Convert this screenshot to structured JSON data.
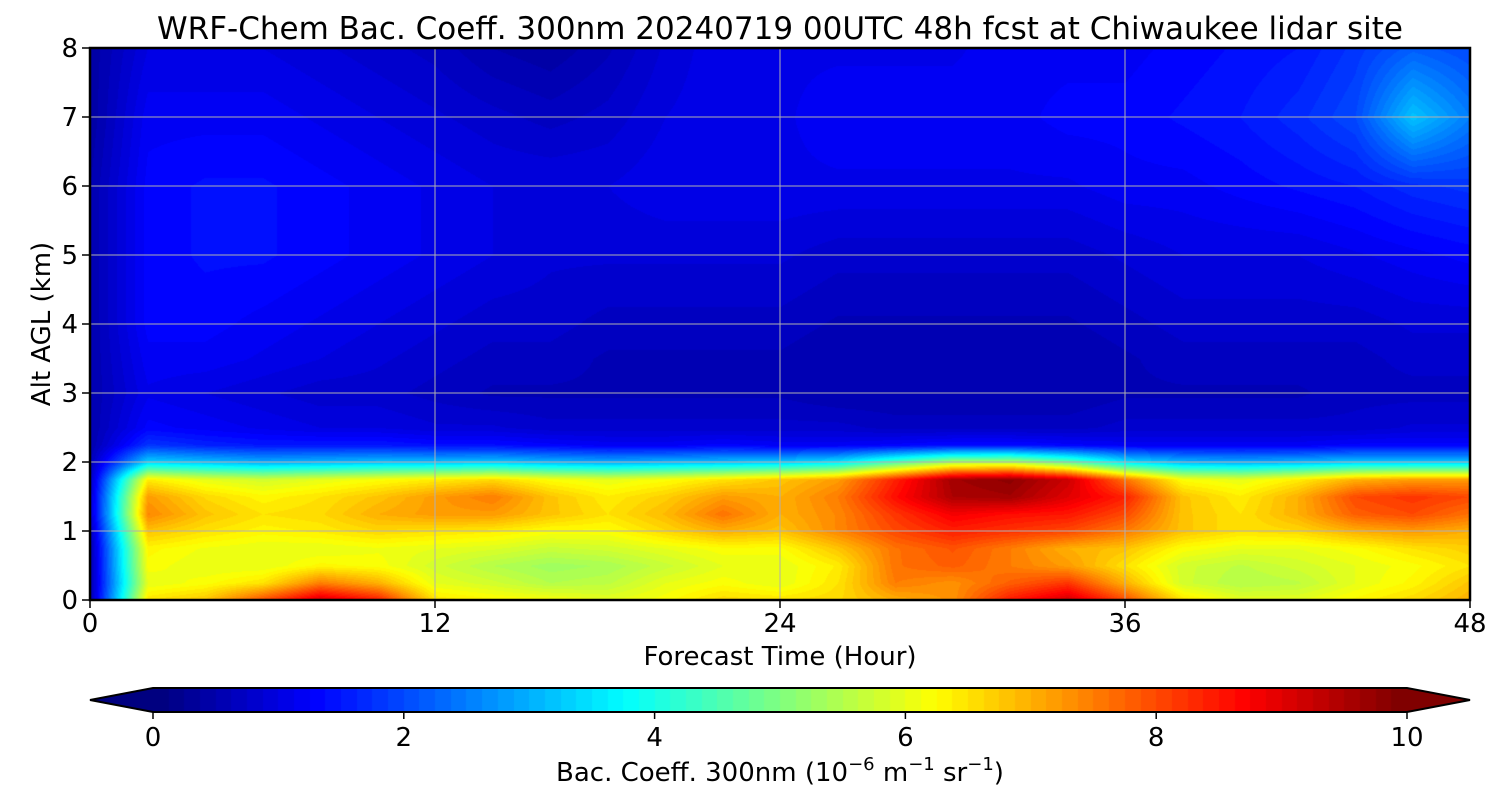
{
  "chart_data": {
    "type": "heatmap",
    "title": "WRF-Chem Bac. Coeff. 300nm  20240719 00UTC 48h fcst at Chiwaukee lidar site",
    "xlabel": "Forecast Time (Hour)",
    "ylabel": "Alt AGL (km)",
    "xlim": [
      0,
      48
    ],
    "ylim": [
      0,
      8
    ],
    "x_ticks": [
      "0",
      "12",
      "24",
      "36",
      "48"
    ],
    "y_ticks": [
      "0",
      "1",
      "2",
      "3",
      "4",
      "5",
      "6",
      "7",
      "8"
    ],
    "grid": true,
    "colormap": "jet",
    "colorbar": {
      "label_main": "Bac. Coeff. 300nm  (10",
      "label_exp1": "−6",
      "label_mid": " m",
      "label_exp2": "−1",
      "label_mid2": " sr",
      "label_exp3": "−1",
      "label_end": ")",
      "range": [
        0,
        10
      ],
      "ticks": [
        "0",
        "2",
        "4",
        "6",
        "8",
        "10"
      ],
      "extend": "both",
      "orientation": "horizontal"
    },
    "grid_x_hours": [
      0,
      2,
      4,
      6,
      8,
      10,
      12,
      14,
      16,
      18,
      20,
      22,
      24,
      26,
      28,
      30,
      32,
      34,
      36,
      38,
      40,
      42,
      44,
      46,
      48
    ],
    "grid_y_km": [
      0,
      0.25,
      0.5,
      0.75,
      1.0,
      1.25,
      1.5,
      1.75,
      2.0,
      2.25,
      2.5,
      3.0,
      3.5,
      4.0,
      5.0,
      6.0,
      7.0,
      8.0
    ],
    "values": [
      [
        0.5,
        6.5,
        6.8,
        8.0,
        9.2,
        8.5,
        6.5,
        6.3,
        6.2,
        6.0,
        6.2,
        6.6,
        6.5,
        6.6,
        7.0,
        7.3,
        8.5,
        9.2,
        8.0,
        6.5,
        6.0,
        6.0,
        6.3,
        6.6,
        7.0
      ],
      [
        0.5,
        6.0,
        6.2,
        6.5,
        7.5,
        7.0,
        6.0,
        5.8,
        5.5,
        5.6,
        6.0,
        6.2,
        6.0,
        6.5,
        7.5,
        7.3,
        7.8,
        8.2,
        7.0,
        5.8,
        5.5,
        5.6,
        6.0,
        6.3,
        6.8
      ],
      [
        0.5,
        6.2,
        6.0,
        6.0,
        6.3,
        6.2,
        5.8,
        5.5,
        5.3,
        5.4,
        5.7,
        6.0,
        6.0,
        6.4,
        7.6,
        7.8,
        7.5,
        7.2,
        6.5,
        5.8,
        5.6,
        5.8,
        6.0,
        6.2,
        6.5
      ],
      [
        0.5,
        6.3,
        6.1,
        6.0,
        6.0,
        6.1,
        6.0,
        5.9,
        5.7,
        5.8,
        6.0,
        6.2,
        6.2,
        6.8,
        7.6,
        7.9,
        7.5,
        7.0,
        6.8,
        6.2,
        6.0,
        6.0,
        6.2,
        6.5,
        6.7
      ],
      [
        0.6,
        6.8,
        6.5,
        6.3,
        6.4,
        6.6,
        6.5,
        6.4,
        6.2,
        6.2,
        6.6,
        7.0,
        6.8,
        7.4,
        8.0,
        8.4,
        8.2,
        8.0,
        7.5,
        6.8,
        6.5,
        6.6,
        7.0,
        7.2,
        7.0
      ],
      [
        0.8,
        7.4,
        6.8,
        6.5,
        6.6,
        7.0,
        7.2,
        7.2,
        6.8,
        6.5,
        6.9,
        7.6,
        7.0,
        7.4,
        8.2,
        8.8,
        8.6,
        8.5,
        8.0,
        6.8,
        6.5,
        7.0,
        7.8,
        8.0,
        7.6
      ],
      [
        0.8,
        7.2,
        6.6,
        6.3,
        6.5,
        6.8,
        7.2,
        7.5,
        6.8,
        6.4,
        6.7,
        7.2,
        7.0,
        7.5,
        8.6,
        9.5,
        9.6,
        9.0,
        8.4,
        6.8,
        6.4,
        7.0,
        8.0,
        8.2,
        8.0
      ],
      [
        0.7,
        6.4,
        6.0,
        5.8,
        6.0,
        6.2,
        6.4,
        6.6,
        6.2,
        6.0,
        6.2,
        6.5,
        6.8,
        7.2,
        8.4,
        9.6,
        9.8,
        9.2,
        7.6,
        6.2,
        6.0,
        6.4,
        7.0,
        7.2,
        7.2
      ],
      [
        0.6,
        3.4,
        3.2,
        3.0,
        3.1,
        3.2,
        3.2,
        3.3,
        3.1,
        3.0,
        3.1,
        3.2,
        3.3,
        3.6,
        4.6,
        5.5,
        5.6,
        4.8,
        3.6,
        3.1,
        3.0,
        3.1,
        3.3,
        3.3,
        3.3
      ],
      [
        0.5,
        1.8,
        1.6,
        1.5,
        1.5,
        1.5,
        1.4,
        1.4,
        1.3,
        1.2,
        1.2,
        1.3,
        1.2,
        1.2,
        1.3,
        1.4,
        1.4,
        1.3,
        1.2,
        1.2,
        1.2,
        1.2,
        1.3,
        1.3,
        1.3
      ],
      [
        0.5,
        1.3,
        1.2,
        1.1,
        1.0,
        1.0,
        0.9,
        0.9,
        0.8,
        0.8,
        0.8,
        0.8,
        0.8,
        0.8,
        0.7,
        0.7,
        0.7,
        0.7,
        0.8,
        0.8,
        0.8,
        0.8,
        0.8,
        0.9,
        0.9
      ],
      [
        0.5,
        1.1,
        1.0,
        0.9,
        0.8,
        0.8,
        0.7,
        0.6,
        0.6,
        0.6,
        0.6,
        0.6,
        0.6,
        0.5,
        0.5,
        0.5,
        0.5,
        0.5,
        0.6,
        0.6,
        0.6,
        0.6,
        0.7,
        0.7,
        0.7
      ],
      [
        0.5,
        1.2,
        1.2,
        1.1,
        1.0,
        0.9,
        0.8,
        0.7,
        0.7,
        0.6,
        0.6,
        0.6,
        0.6,
        0.5,
        0.5,
        0.5,
        0.5,
        0.5,
        0.6,
        0.7,
        0.7,
        0.7,
        0.7,
        0.8,
        0.8
      ],
      [
        0.5,
        1.3,
        1.3,
        1.2,
        1.1,
        1.0,
        0.9,
        0.8,
        0.8,
        0.7,
        0.7,
        0.7,
        0.7,
        0.6,
        0.6,
        0.6,
        0.6,
        0.6,
        0.7,
        0.8,
        0.8,
        0.8,
        0.8,
        0.9,
        0.9
      ],
      [
        0.5,
        1.3,
        1.4,
        1.4,
        1.3,
        1.2,
        1.1,
        1.0,
        0.9,
        0.9,
        0.9,
        0.9,
        0.9,
        0.8,
        0.8,
        0.8,
        0.8,
        0.8,
        0.9,
        1.0,
        1.0,
        1.0,
        1.1,
        1.2,
        1.3
      ],
      [
        0.5,
        1.3,
        1.4,
        1.4,
        1.3,
        1.2,
        1.1,
        1.0,
        1.0,
        1.0,
        1.1,
        1.1,
        1.1,
        1.1,
        1.1,
        1.1,
        1.1,
        1.1,
        1.2,
        1.2,
        1.3,
        1.4,
        1.5,
        1.7,
        1.8
      ],
      [
        0.4,
        1.2,
        1.2,
        1.2,
        1.1,
        1.0,
        0.9,
        0.8,
        0.7,
        0.8,
        1.0,
        1.1,
        1.1,
        1.2,
        1.2,
        1.2,
        1.2,
        1.3,
        1.3,
        1.4,
        1.5,
        1.7,
        2.0,
        3.2,
        2.5
      ],
      [
        0.4,
        1.0,
        1.0,
        1.0,
        0.9,
        0.8,
        0.7,
        0.5,
        0.4,
        0.6,
        0.9,
        1.1,
        1.1,
        1.1,
        1.1,
        1.1,
        1.2,
        1.2,
        1.2,
        1.3,
        1.4,
        1.5,
        1.8,
        2.2,
        2.0
      ]
    ]
  }
}
